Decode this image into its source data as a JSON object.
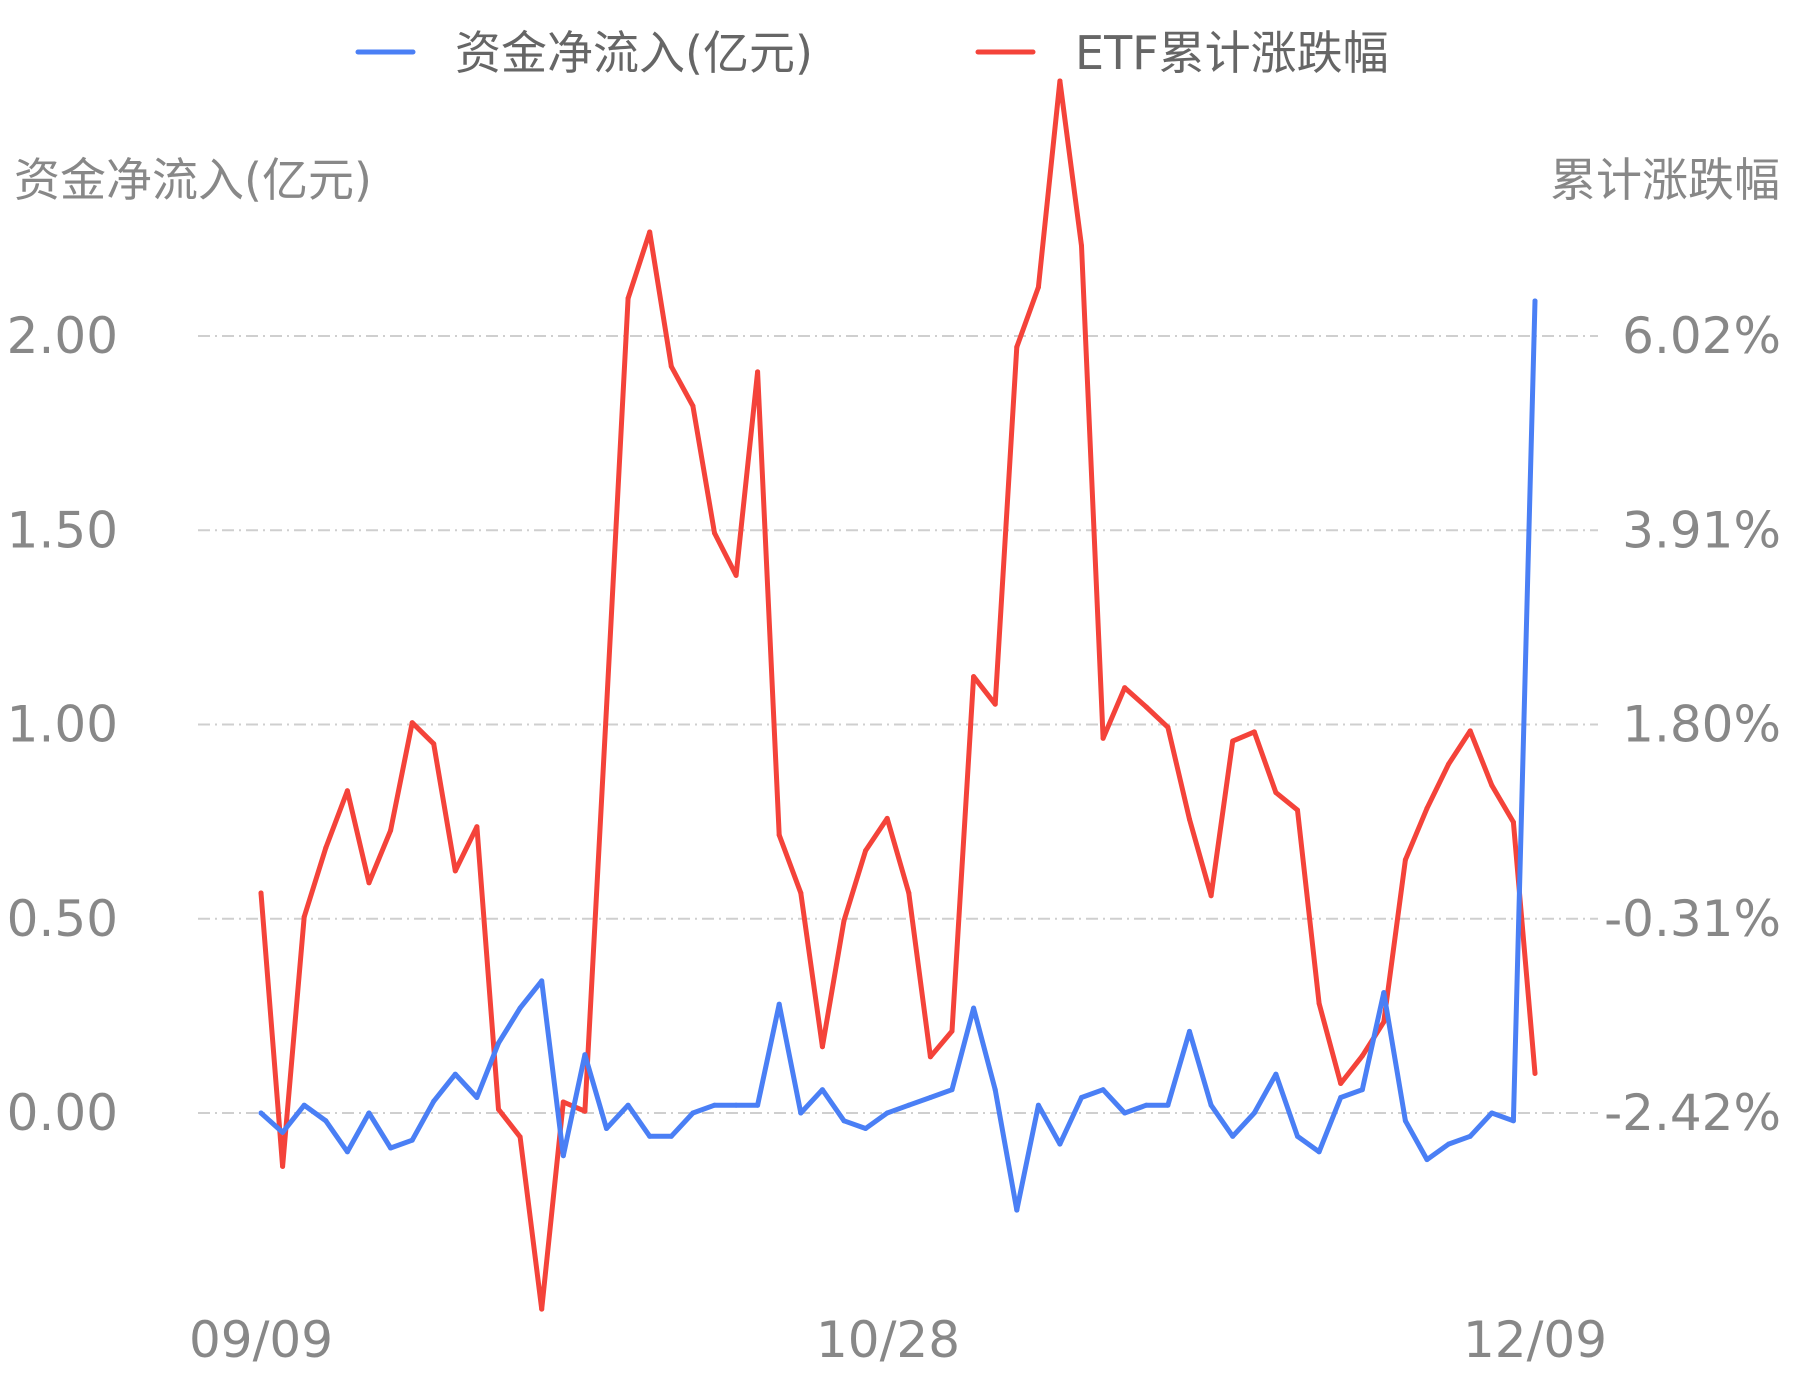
{
  "chart_data": {
    "type": "line",
    "legend": {
      "placement": "top-center"
    },
    "y_left": {
      "title": "资金净流入(亿元)",
      "ticks": [
        "0.00",
        "0.50",
        "1.00",
        "1.50",
        "2.00"
      ],
      "ylim": [
        0,
        2
      ]
    },
    "y_right": {
      "title": "累计涨跌幅",
      "ticks": [
        "-2.42%",
        "-0.31%",
        "1.80%",
        "3.91%",
        "6.02%"
      ],
      "ylim": [
        -2.42,
        6.02
      ]
    },
    "x_ticks": [
      "09/09",
      "10/28",
      "12/09"
    ],
    "grid": true,
    "series": [
      {
        "name": "资金净流入(亿元)",
        "axis": "left",
        "color": "#4a7ff5",
        "values": [
          0.0,
          -0.05,
          0.02,
          -0.02,
          -0.1,
          0.0,
          -0.09,
          -0.07,
          0.03,
          0.1,
          0.04,
          0.18,
          0.27,
          0.34,
          -0.11,
          0.15,
          -0.04,
          0.02,
          -0.06,
          -0.06,
          0.0,
          0.02,
          0.02,
          0.02,
          0.28,
          0.0,
          0.06,
          -0.02,
          -0.04,
          0.0,
          0.02,
          0.04,
          0.06,
          0.27,
          0.06,
          -0.25,
          0.02,
          -0.08,
          0.04,
          0.06,
          0.0,
          0.02,
          0.02,
          0.21,
          0.02,
          -0.06,
          0.0,
          0.1,
          -0.06,
          -0.1,
          0.04,
          0.06,
          0.31,
          -0.02,
          -0.12,
          -0.08,
          -0.06,
          0.0,
          -0.02,
          2.09
        ]
      },
      {
        "name": "ETF累计涨跌幅",
        "axis": "right",
        "color": "#f4433a",
        "values": [
          -0.03,
          -3.0,
          -0.29,
          0.46,
          1.08,
          0.08,
          0.65,
          1.82,
          1.59,
          0.21,
          0.69,
          -2.38,
          -2.68,
          -4.55,
          -2.3,
          -2.4,
          1.98,
          6.43,
          7.15,
          5.69,
          5.26,
          3.88,
          3.42,
          5.63,
          0.6,
          -0.03,
          -1.7,
          -0.33,
          0.43,
          0.78,
          -0.03,
          -1.81,
          -1.53,
          2.32,
          2.02,
          5.9,
          6.55,
          8.79,
          7.0,
          1.65,
          2.2,
          1.99,
          1.77,
          0.77,
          -0.06,
          1.62,
          1.72,
          1.06,
          0.87,
          -1.23,
          -2.1,
          -1.8,
          -1.43,
          0.33,
          0.89,
          1.37,
          1.73,
          1.14,
          0.74,
          -1.99
        ]
      }
    ]
  }
}
